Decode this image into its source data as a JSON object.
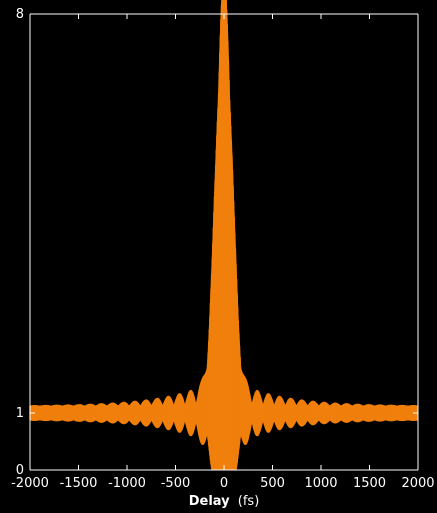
{
  "chart_data": {
    "type": "line",
    "title": "",
    "xlabel": "Delay",
    "xlabel_unit": "(fs)",
    "ylabel": "",
    "xlim": [
      -2000,
      2000
    ],
    "ylim": [
      0,
      8
    ],
    "xticks": [
      -2000,
      -1500,
      -1000,
      -500,
      0,
      500,
      1000,
      1500,
      2000
    ],
    "yticks": [
      0,
      1,
      8
    ],
    "grid": false,
    "legend": "none",
    "background": "#000000",
    "axis_color": "#ffffff",
    "series": [
      {
        "color": "#f07f0c",
        "description_values": {
          "baseline": 1,
          "peak_value": 8,
          "peak_delay": 0,
          "central_lobe_halfwidth_fs": 150,
          "fringe_period_fs": 2.7,
          "upper_envelope": {
            "x": [
              -2000,
              -1500,
              -1000,
              -800,
              -600,
              -400,
              -300,
              -200,
              -150,
              -100,
              -50,
              0,
              50,
              100,
              150,
              200,
              300,
              400,
              600,
              800,
              1000,
              1500,
              2000
            ],
            "y": [
              1.1,
              1.1,
              1.15,
              1.2,
              1.25,
              1.4,
              1.55,
              1.8,
              2.5,
              4.5,
              7.0,
              8.0,
              7.0,
              4.5,
              2.5,
              1.8,
              1.55,
              1.4,
              1.25,
              1.2,
              1.15,
              1.1,
              1.1
            ]
          },
          "lower_envelope": {
            "x": [
              -2000,
              -1500,
              -1000,
              -800,
              -600,
              -400,
              -300,
              -200,
              -150,
              -100,
              -50,
              0,
              50,
              100,
              150,
              200,
              300,
              400,
              600,
              800,
              1000,
              1500,
              2000
            ],
            "y": [
              0.9,
              0.9,
              0.85,
              0.8,
              0.75,
              0.6,
              0.45,
              0.25,
              0.1,
              0.0,
              0.0,
              0.0,
              0.0,
              0.0,
              0.1,
              0.25,
              0.45,
              0.6,
              0.75,
              0.8,
              0.85,
              0.9,
              0.9
            ]
          }
        }
      }
    ]
  }
}
